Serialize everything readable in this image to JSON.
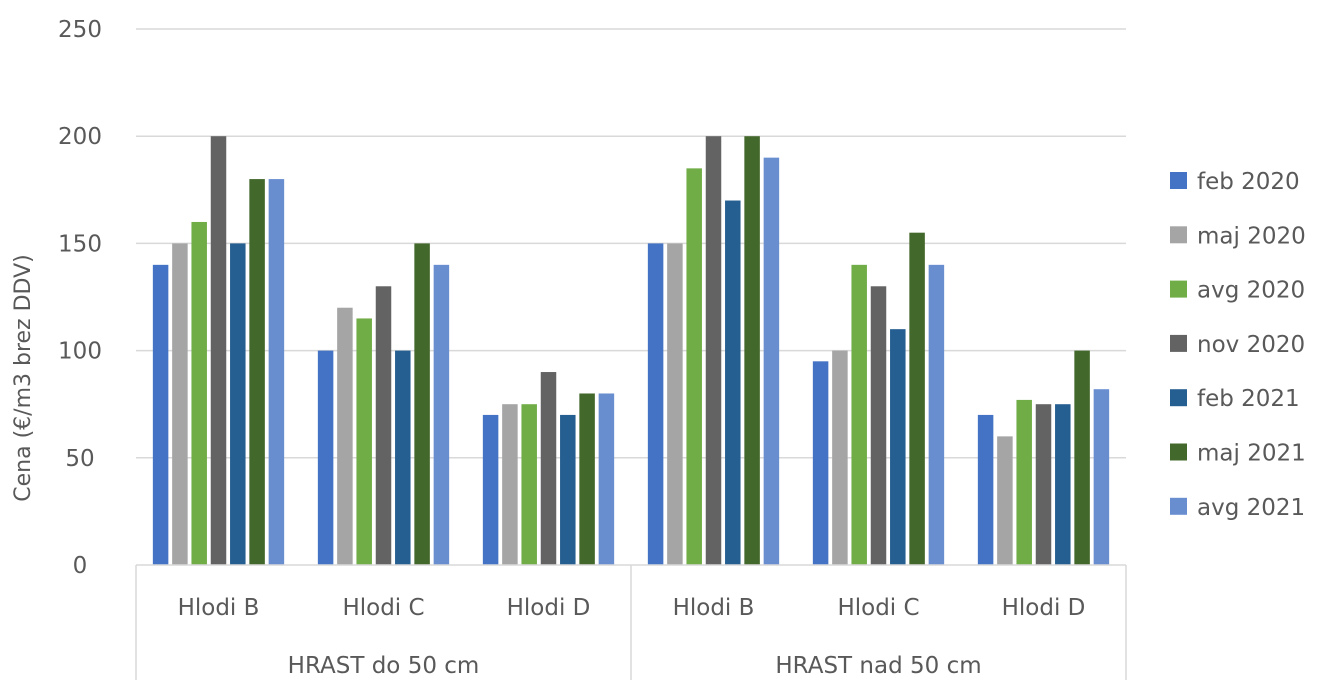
{
  "chart_data": {
    "type": "bar",
    "ylabel": "Cena (€/m3 brez DDV)",
    "ylim": [
      0,
      250
    ],
    "yticks": [
      0,
      50,
      100,
      150,
      200,
      250
    ],
    "grid": true,
    "legend_position": "right",
    "groups": [
      {
        "label": "HRAST do 50 cm",
        "categories": [
          "Hlodi B",
          "Hlodi C",
          "Hlodi D"
        ]
      },
      {
        "label": "HRAST nad 50 cm",
        "categories": [
          "Hlodi B",
          "Hlodi C",
          "Hlodi D"
        ]
      }
    ],
    "categories": [
      "Hlodi B",
      "Hlodi C",
      "Hlodi D",
      "Hlodi B",
      "Hlodi C",
      "Hlodi D"
    ],
    "series": [
      {
        "name": "feb 2020",
        "color": "#4472C4",
        "values": [
          140,
          100,
          70,
          150,
          95,
          70
        ]
      },
      {
        "name": "maj 2020",
        "color": "#A5A5A5",
        "values": [
          150,
          120,
          75,
          150,
          100,
          60
        ]
      },
      {
        "name": "avg 2020",
        "color": "#70AD47",
        "values": [
          160,
          115,
          75,
          185,
          140,
          77
        ]
      },
      {
        "name": "nov 2020",
        "color": "#636363",
        "values": [
          200,
          130,
          90,
          200,
          130,
          75
        ]
      },
      {
        "name": "feb 2021",
        "color": "#255E91",
        "values": [
          150,
          100,
          70,
          170,
          110,
          75
        ]
      },
      {
        "name": "maj 2021",
        "color": "#43682B",
        "values": [
          180,
          150,
          80,
          200,
          155,
          100
        ]
      },
      {
        "name": "avg 2021",
        "color": "#698ED0",
        "values": [
          180,
          140,
          80,
          190,
          140,
          82
        ]
      }
    ]
  }
}
